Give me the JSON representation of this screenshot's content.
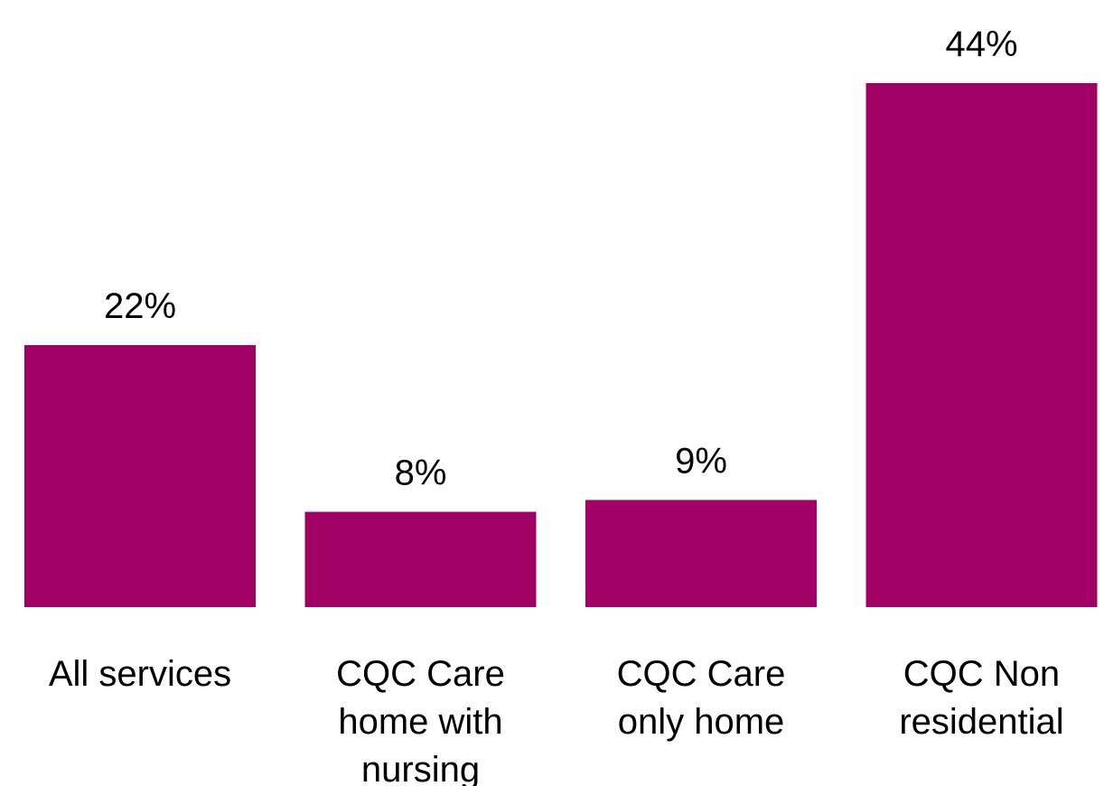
{
  "chart_data": {
    "type": "bar",
    "categories": [
      "All services",
      "CQC Care home with nursing",
      "CQC Care only home",
      "CQC Non residential"
    ],
    "category_lines": [
      [
        "All services"
      ],
      [
        "CQC Care",
        "home with",
        "nursing"
      ],
      [
        "CQC Care",
        "only home"
      ],
      [
        "CQC Non",
        "residential"
      ]
    ],
    "values": [
      22,
      8,
      9,
      44
    ],
    "data_labels": [
      "22%",
      "8%",
      "9%",
      "44%"
    ],
    "ylim": [
      0,
      44
    ],
    "grid": false,
    "legend": "none",
    "bar_color": "#A10065"
  }
}
